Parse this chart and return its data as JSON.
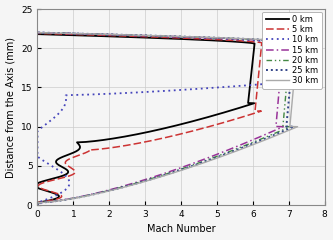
{
  "xlabel": "Mach Number",
  "ylabel": "Distance from the Axis (mm)",
  "xlim": [
    0,
    8
  ],
  "ylim": [
    0,
    25
  ],
  "xticks": [
    0,
    1,
    2,
    3,
    4,
    5,
    6,
    7,
    8
  ],
  "yticks": [
    0,
    5,
    10,
    15,
    20,
    25
  ],
  "series": [
    {
      "label": "0 km",
      "color": "#000000",
      "ls": "-",
      "lw": 1.3,
      "dashes": null
    },
    {
      "label": "5 km",
      "color": "#cc3333",
      "ls": "--",
      "lw": 1.1,
      "dashes": [
        5,
        2
      ]
    },
    {
      "label": "10 km",
      "color": "#4444bb",
      "ls": ":",
      "lw": 1.3,
      "dashes": [
        1,
        2
      ]
    },
    {
      "label": "15 km",
      "color": "#993399",
      "ls": "-.",
      "lw": 1.1,
      "dashes": [
        5,
        2,
        1,
        2
      ]
    },
    {
      "label": "20 km",
      "color": "#448844",
      "ls": "--",
      "lw": 1.0,
      "dashes": [
        4,
        2,
        1,
        2,
        1,
        2
      ]
    },
    {
      "label": "25 km",
      "color": "#334488",
      "ls": ":",
      "lw": 1.4,
      "dashes": [
        1,
        1.5
      ]
    },
    {
      "label": "30 km",
      "color": "#aaaaaa",
      "ls": "-",
      "lw": 1.0,
      "dashes": null
    }
  ],
  "background_color": "#f5f5f5",
  "grid_color": "#cccccc",
  "legend_fontsize": 6.0,
  "axis_fontsize": 7,
  "tick_fontsize": 6.5
}
